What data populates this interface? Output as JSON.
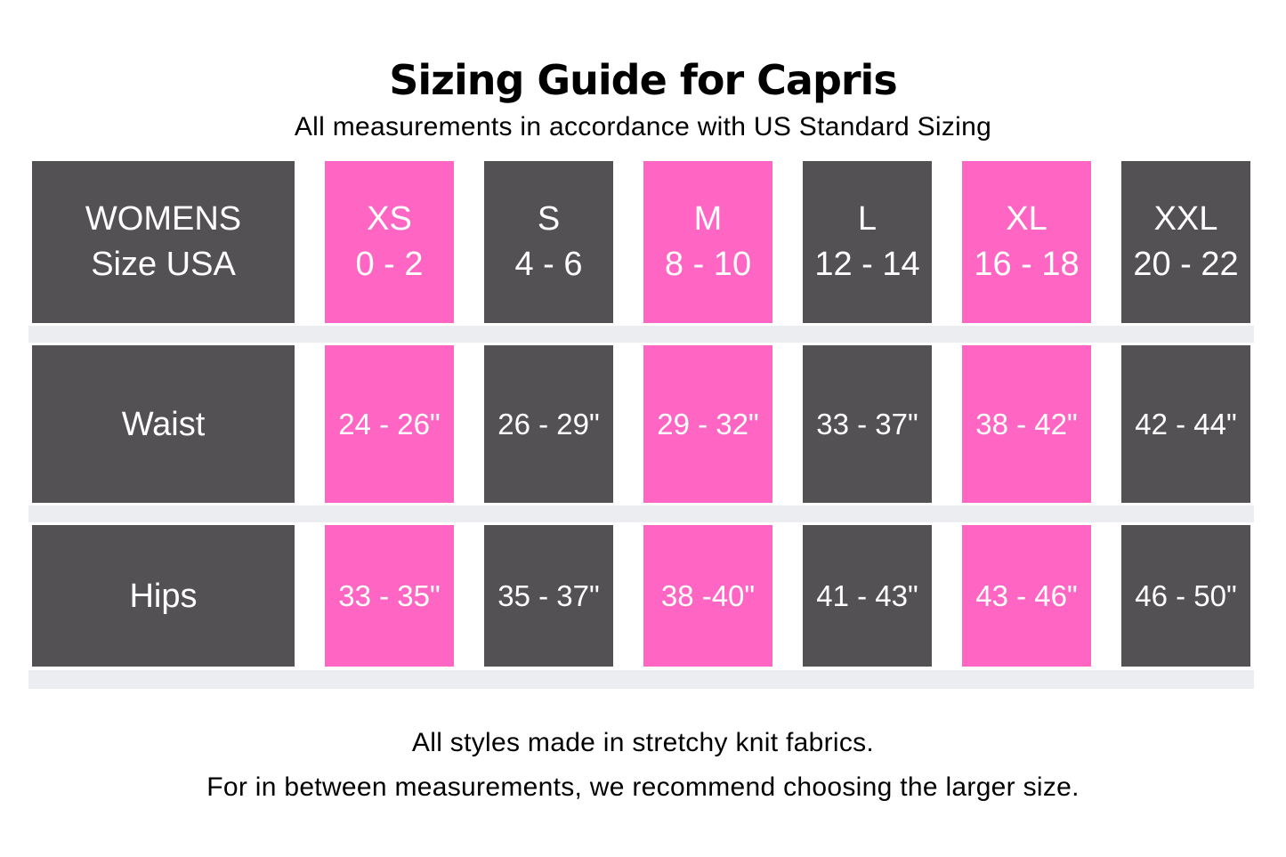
{
  "title": "Sizing Guide for Capris",
  "subtitle": "All measurements in accordance with US Standard Sizing",
  "table": {
    "header": {
      "label_line1": "WOMENS",
      "label_line2": "Size USA",
      "sizes": [
        {
          "code": "XS",
          "range": "0 - 2",
          "highlight": true
        },
        {
          "code": "S",
          "range": "4 - 6",
          "highlight": false
        },
        {
          "code": "M",
          "range": "8 - 10",
          "highlight": true
        },
        {
          "code": "L",
          "range": "12 - 14",
          "highlight": false
        },
        {
          "code": "XL",
          "range": "16 - 18",
          "highlight": true
        },
        {
          "code": "XXL",
          "range": "20 - 22",
          "highlight": false
        }
      ]
    },
    "rows": [
      {
        "label": "Waist",
        "values": [
          "24 - 26\"",
          "26 - 29\"",
          "29 - 32\"",
          "33 - 37\"",
          "38 - 42\"",
          "42 - 44\""
        ]
      },
      {
        "label": "Hips",
        "values": [
          "33 - 35\"",
          "35 - 37\"",
          "38 -40\"",
          "41 - 43\"",
          "43 - 46\"",
          "46 - 50\""
        ]
      }
    ]
  },
  "footer": {
    "line1": "All styles made in stretchy knit fabrics.",
    "line2": "For in between measurements, we recommend choosing the larger size."
  },
  "colors": {
    "dark_cell": "#545155",
    "pink_cell": "#FF66C4",
    "divider": "#ECEDF1",
    "cell_text": "#FFFFFF",
    "body_text": "#000000"
  }
}
